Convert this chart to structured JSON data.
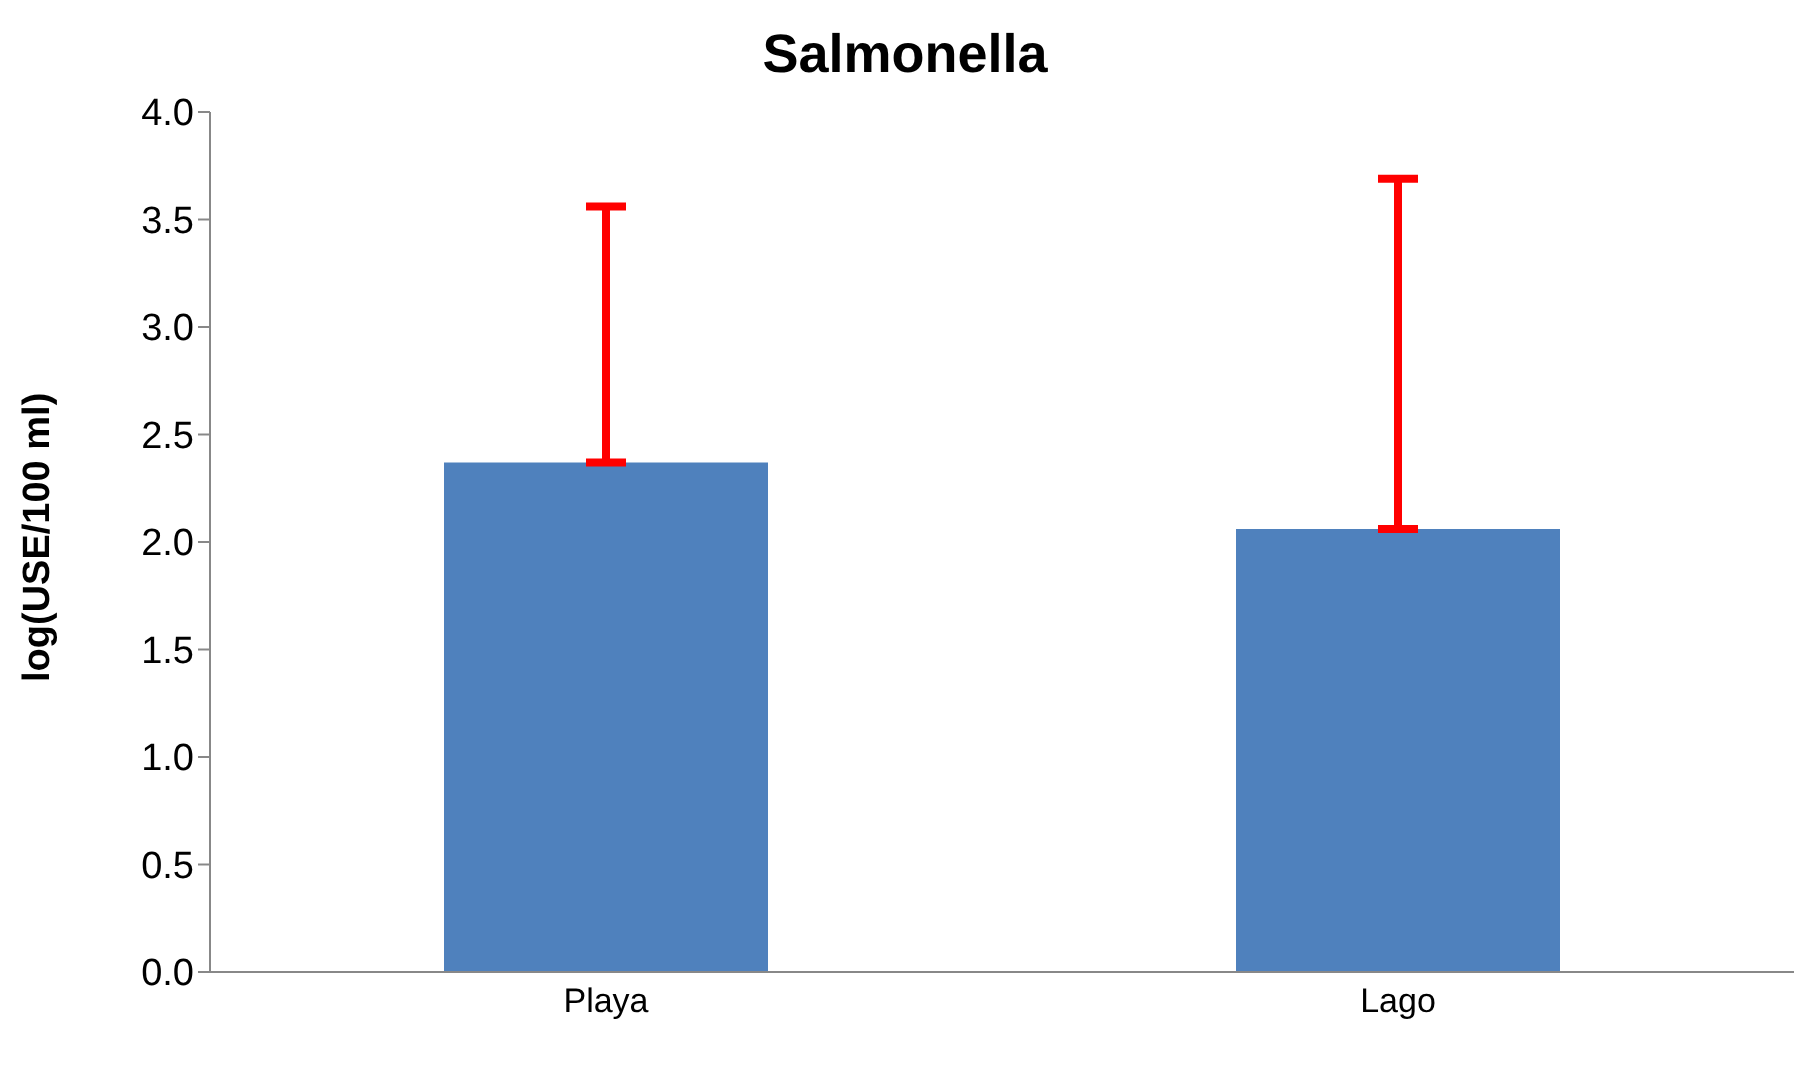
{
  "chart_data": {
    "type": "bar",
    "title": "Salmonella",
    "ylabel": "log(USE/100 ml)",
    "categories": [
      "Playa",
      "Lago"
    ],
    "values": [
      2.37,
      2.06
    ],
    "errors": [
      [
        2.37,
        3.56
      ],
      [
        2.06,
        3.69
      ]
    ],
    "color": "#4f81bd",
    "ylim": [
      0,
      4
    ],
    "yticks": [
      {
        "value": 0,
        "label": "0.0"
      },
      {
        "value": 0.5,
        "label": "0.5"
      },
      {
        "value": 1,
        "label": "1.0"
      },
      {
        "value": 1.5,
        "label": "1.5"
      },
      {
        "value": 2,
        "label": "2.0"
      },
      {
        "value": 2.5,
        "label": "2.5"
      },
      {
        "value": 3,
        "label": "3.0"
      },
      {
        "value": 3.5,
        "label": "3.5"
      },
      {
        "value": 4,
        "label": "4.0"
      }
    ],
    "grid": false,
    "legend": false
  }
}
